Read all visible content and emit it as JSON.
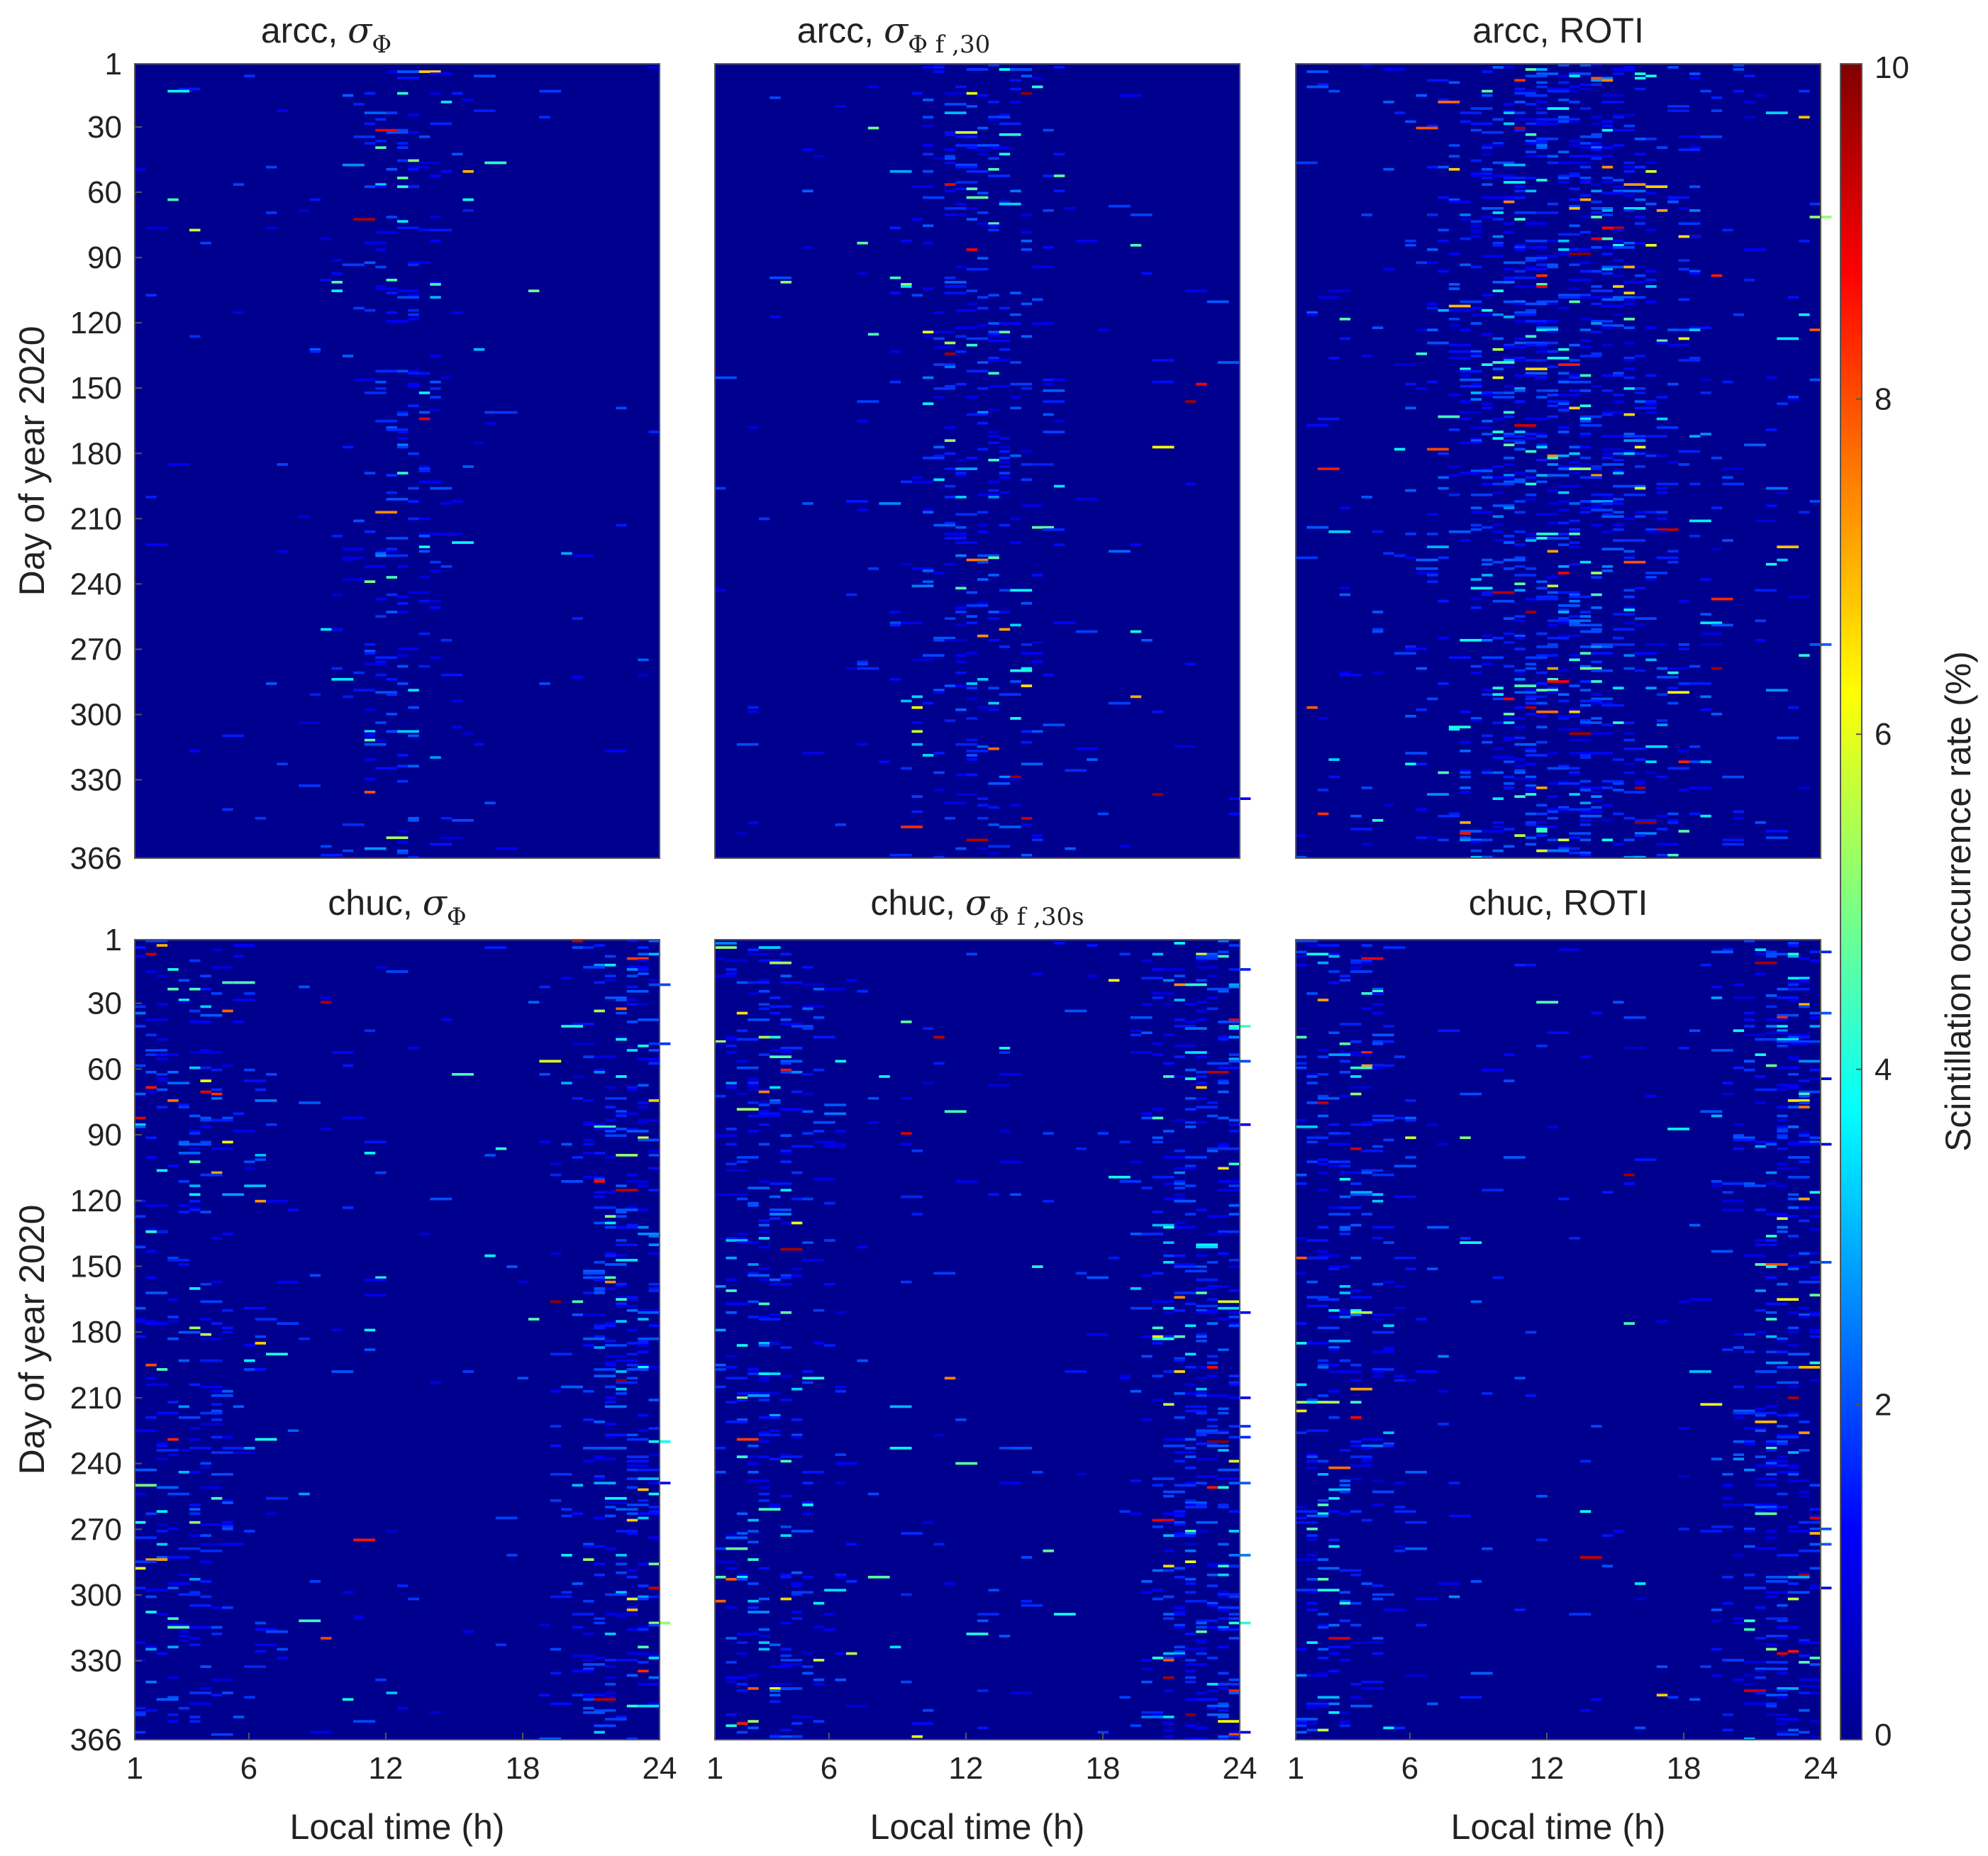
{
  "chart_data": [
    {
      "type": "heatmap",
      "station": "arcc",
      "title_prefix": "arcc, ",
      "title_math_symbol": "σ",
      "title_math_sub": "Φ",
      "ylabel": "Day of year 2020",
      "xlabel": "",
      "yticks": [
        "1",
        "30",
        "60",
        "90",
        "120",
        "150",
        "180",
        "210",
        "240",
        "270",
        "300",
        "330",
        "366"
      ],
      "xticks": [],
      "xlim": [
        1,
        24
      ],
      "ylim": [
        1,
        366
      ],
      "activity_peaks": [
        {
          "center": 12.5,
          "width": 2.2,
          "strength": 0.9
        }
      ],
      "density": 0.9
    },
    {
      "type": "heatmap",
      "station": "arcc",
      "title_prefix": "arcc, ",
      "title_math_symbol": "σ",
      "title_math_sub": "Φ f ,30",
      "ylabel": "",
      "xlabel": "",
      "yticks": [],
      "xticks": [],
      "xlim": [
        1,
        24
      ],
      "ylim": [
        1,
        366
      ],
      "activity_peaks": [
        {
          "center": 12.5,
          "width": 3.0,
          "strength": 0.9
        }
      ],
      "density": 1.1
    },
    {
      "type": "heatmap",
      "station": "arcc",
      "title_prefix": "arcc, ROTI",
      "title_math_symbol": "",
      "title_math_sub": "",
      "ylabel": "",
      "xlabel": "",
      "yticks": [],
      "xticks": [],
      "xlim": [
        1,
        24
      ],
      "ylim": [
        1,
        366
      ],
      "activity_peaks": [
        {
          "center": 12.5,
          "width": 4.5,
          "strength": 1.0
        }
      ],
      "density": 1.8
    },
    {
      "type": "heatmap",
      "station": "chuc",
      "title_prefix": "chuc, ",
      "title_math_symbol": "σ",
      "title_math_sub": "Φ",
      "ylabel": "Day of year 2020",
      "xlabel": "Local time (h)",
      "yticks": [
        "1",
        "30",
        "60",
        "90",
        "120",
        "150",
        "180",
        "210",
        "240",
        "270",
        "300",
        "330",
        "366"
      ],
      "xticks": [
        "1",
        "6",
        "12",
        "18",
        "24"
      ],
      "xlim": [
        1,
        24
      ],
      "ylim": [
        1,
        366
      ],
      "activity_peaks": [
        {
          "center": 22.5,
          "width": 2.0,
          "strength": 1.3
        },
        {
          "center": 3.0,
          "width": 2.5,
          "strength": 0.9
        }
      ],
      "density": 1.2
    },
    {
      "type": "heatmap",
      "station": "chuc",
      "title_prefix": "chuc, ",
      "title_math_symbol": "σ",
      "title_math_sub": "Φ f ,30s",
      "ylabel": "",
      "xlabel": "Local time (h)",
      "yticks": [],
      "xticks": [
        "1",
        "6",
        "12",
        "18",
        "24"
      ],
      "xlim": [
        1,
        24
      ],
      "ylim": [
        1,
        366
      ],
      "activity_peaks": [
        {
          "center": 22.5,
          "width": 2.2,
          "strength": 1.3
        },
        {
          "center": 3.0,
          "width": 2.5,
          "strength": 0.9
        }
      ],
      "density": 1.3
    },
    {
      "type": "heatmap",
      "station": "chuc",
      "title_prefix": "chuc, ROTI",
      "title_math_symbol": "",
      "title_math_sub": "",
      "ylabel": "",
      "xlabel": "Local time (h)",
      "yticks": [],
      "xticks": [
        "1",
        "6",
        "12",
        "18",
        "24"
      ],
      "xlim": [
        1,
        24
      ],
      "ylim": [
        1,
        366
      ],
      "activity_peaks": [
        {
          "center": 22.5,
          "width": 2.2,
          "strength": 1.2
        },
        {
          "center": 3.0,
          "width": 2.5,
          "strength": 0.9
        }
      ],
      "density": 1.3
    }
  ],
  "colorbar": {
    "label": "Scintillation occurrence rate (%)",
    "min": 0,
    "max": 10,
    "ticks": [
      "0",
      "2",
      "4",
      "6",
      "8",
      "10"
    ],
    "colormap": "jet",
    "background_color": "#00008f"
  }
}
